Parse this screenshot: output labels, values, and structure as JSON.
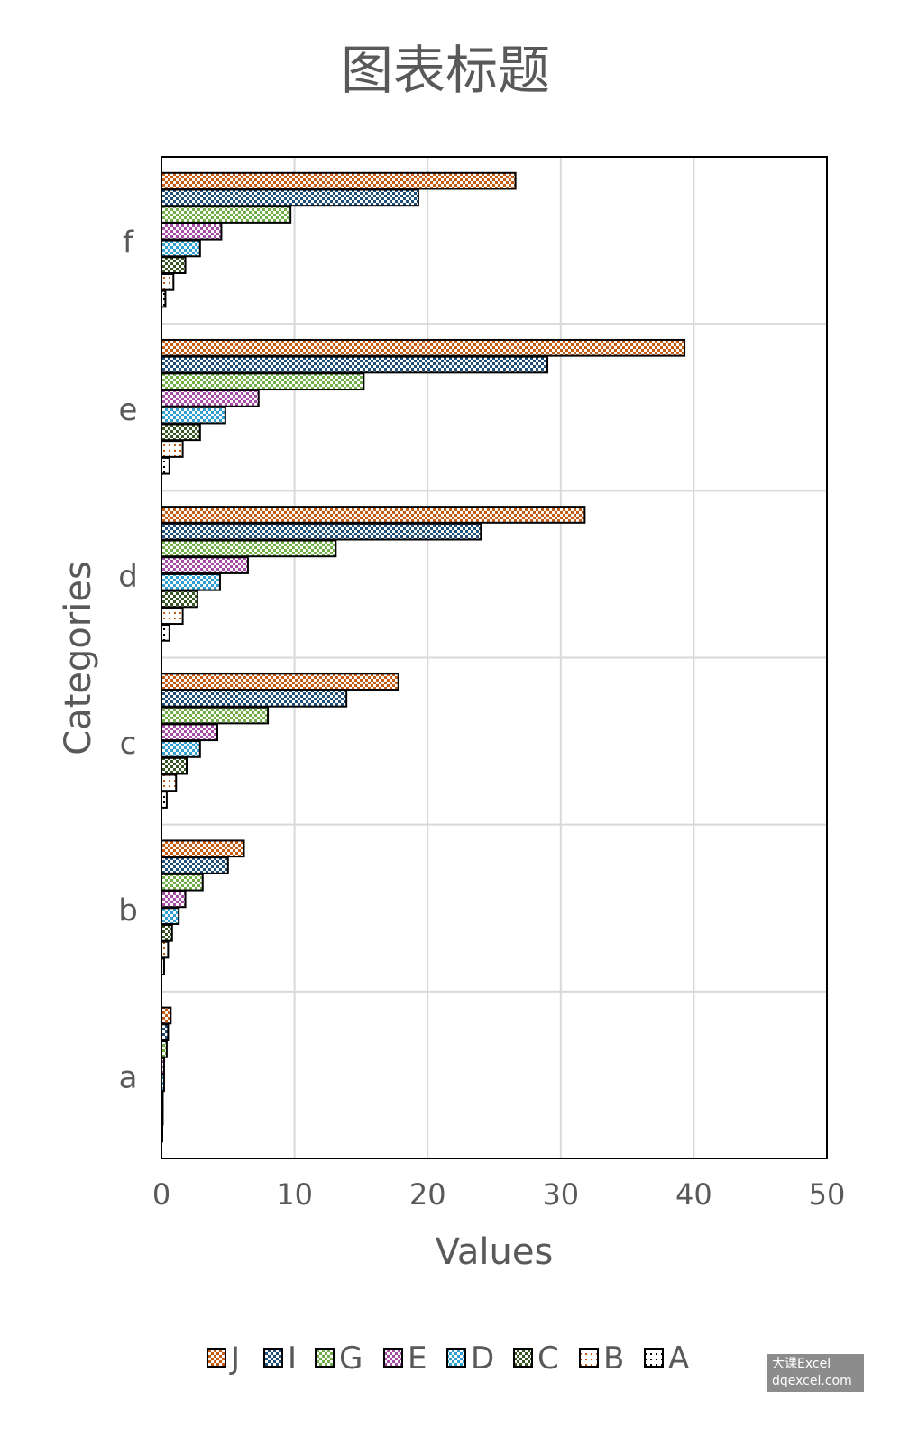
{
  "chart_data": {
    "type": "bar",
    "orientation": "horizontal",
    "title": "图表标题",
    "xlabel": "Values",
    "ylabel": "Categories",
    "xlim": [
      0,
      50
    ],
    "xticks": [
      "0",
      "10",
      "20",
      "30",
      "40",
      "50"
    ],
    "categories": [
      "a",
      "b",
      "c",
      "d",
      "e",
      "f"
    ],
    "series": [
      {
        "name": "J",
        "values": [
          0.7,
          6.2,
          17.8,
          31.8,
          39.3,
          26.6
        ],
        "color": "#c55a11"
      },
      {
        "name": "I",
        "values": [
          0.5,
          5.0,
          13.9,
          24.0,
          29.0,
          19.3
        ],
        "color": "#1f4e79"
      },
      {
        "name": "G",
        "values": [
          0.4,
          3.1,
          8.0,
          13.1,
          15.2,
          9.7
        ],
        "color": "#70ad47"
      },
      {
        "name": "E",
        "values": [
          0.2,
          1.8,
          4.2,
          6.5,
          7.3,
          4.5
        ],
        "color": "#a64ca6"
      },
      {
        "name": "D",
        "values": [
          0.2,
          1.3,
          2.9,
          4.4,
          4.8,
          2.9
        ],
        "color": "#2e9fd0"
      },
      {
        "name": "C",
        "values": [
          0.1,
          0.8,
          1.9,
          2.7,
          2.9,
          1.8
        ],
        "color": "#375623"
      },
      {
        "name": "B",
        "values": [
          0.1,
          0.5,
          1.1,
          1.6,
          1.6,
          0.9
        ],
        "color": "#c55a11"
      },
      {
        "name": "A",
        "values": [
          0.05,
          0.2,
          0.4,
          0.6,
          0.6,
          0.3
        ],
        "color": "#000000"
      }
    ],
    "grid": true,
    "legend": "bottom"
  },
  "watermark": {
    "line1": "大课Excel",
    "line2": "dqexcel.com"
  }
}
